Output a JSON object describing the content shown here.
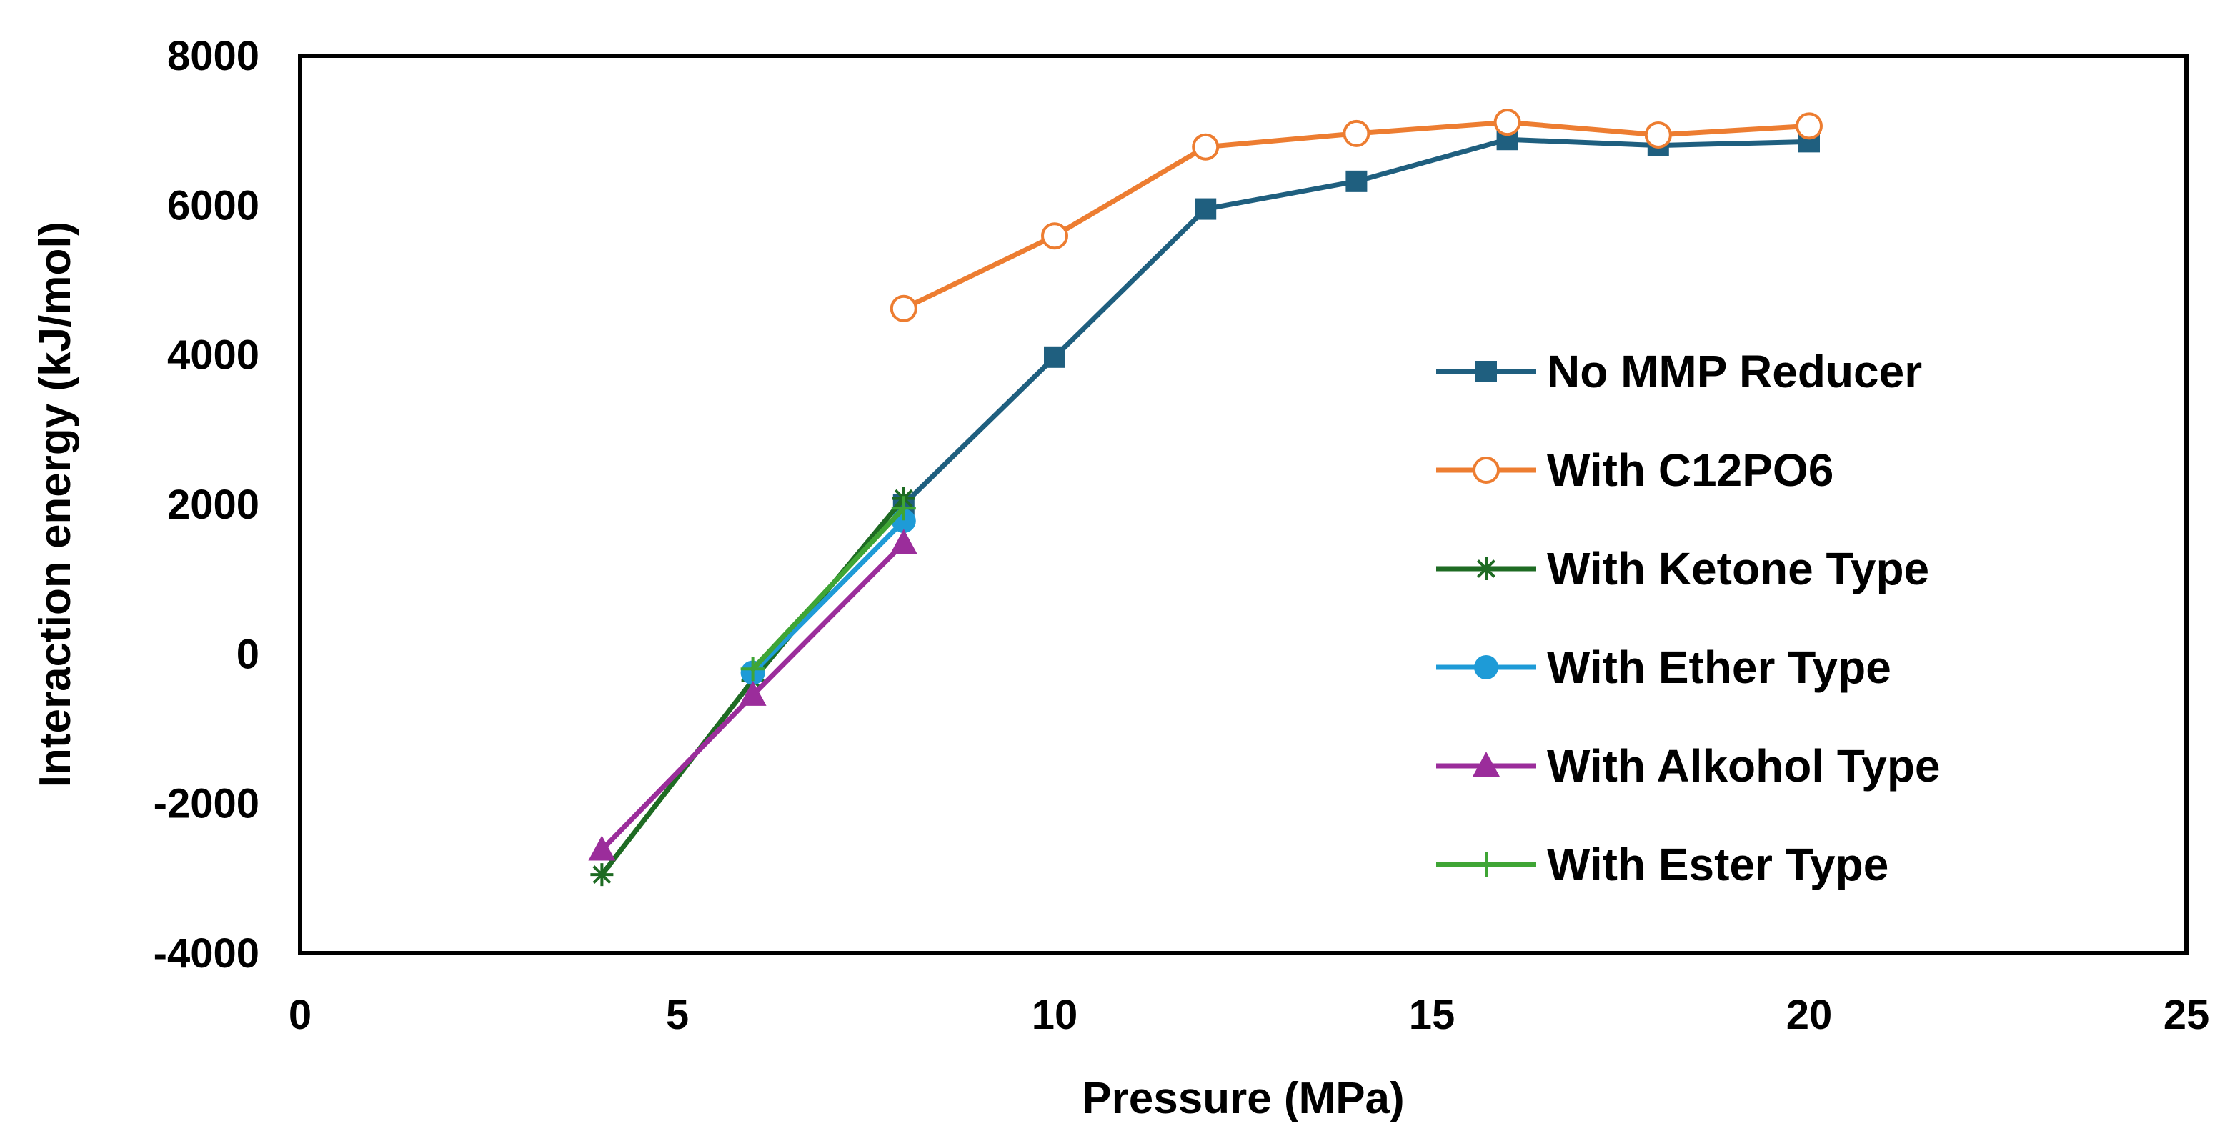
{
  "chart_data": {
    "type": "line",
    "title": "",
    "xlabel": "Pressure (MPa)",
    "ylabel": "Interaction energy (kJ/mol)",
    "xlim": [
      0,
      25
    ],
    "ylim": [
      -4000,
      8000
    ],
    "xticks": [
      0,
      5,
      10,
      15,
      20,
      25
    ],
    "yticks": [
      -4000,
      -2000,
      0,
      2000,
      4000,
      6000,
      8000
    ],
    "grid": false,
    "legend_position": "right",
    "series": [
      {
        "name": "No MMP Reducer",
        "color": "#1f5f7f",
        "marker": "square-filled",
        "x": [
          8,
          10,
          12,
          14,
          16,
          18,
          20
        ],
        "y": [
          2000,
          3970,
          5950,
          6320,
          6880,
          6800,
          6850
        ]
      },
      {
        "name": "With C12PO6",
        "color": "#ed7d31",
        "marker": "circle-open",
        "x": [
          8,
          10,
          12,
          14,
          16,
          18,
          20
        ],
        "y": [
          4620,
          5590,
          6780,
          6960,
          7110,
          6940,
          7060
        ]
      },
      {
        "name": "With Ketone Type",
        "color": "#1e6b23",
        "marker": "asterisk",
        "x": [
          4,
          6,
          8
        ],
        "y": [
          -2950,
          -350,
          2080
        ]
      },
      {
        "name": "With Ether Type",
        "color": "#1e9bd7",
        "marker": "circle-filled",
        "x": [
          6,
          8
        ],
        "y": [
          -250,
          1780
        ]
      },
      {
        "name": "With Alkohol Type",
        "color": "#9b2d9b",
        "marker": "triangle-filled",
        "x": [
          4,
          6,
          8
        ],
        "y": [
          -2620,
          -550,
          1480
        ]
      },
      {
        "name": "With Ester Type",
        "color": "#3fa535",
        "marker": "plus",
        "x": [
          6,
          8
        ],
        "y": [
          -200,
          1950
        ]
      }
    ]
  }
}
